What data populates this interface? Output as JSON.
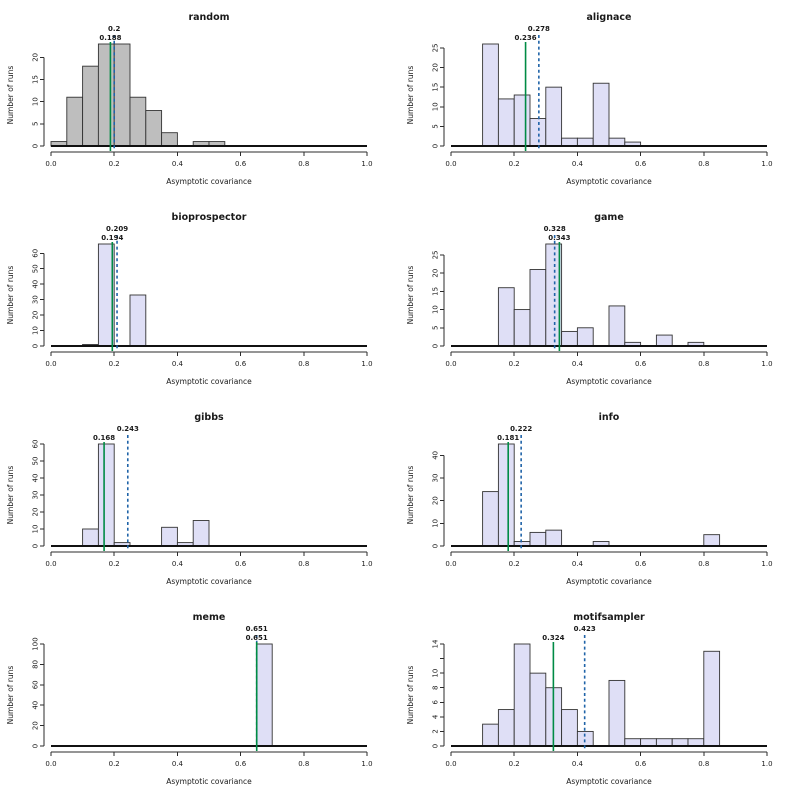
{
  "figure": {
    "layout": "4x2-grid",
    "background": "#ffffff",
    "colors": {
      "bar_gray": "#BEBEBE",
      "bar_lavender": "#DFDFF6",
      "bar_stroke": "#333333",
      "axis": "#2b2b2b",
      "solid_line": "#008B45",
      "dashed_line": "#1F63A8",
      "text": "#1a1a1a"
    },
    "axes_shared": {
      "xlabel": "Asymptotic covariance",
      "ylabel": "Number of runs",
      "xlim": [
        0.0,
        1.0
      ],
      "xticks": [
        0.0,
        0.2,
        0.4,
        0.6,
        0.8,
        1.0
      ],
      "xtick_labels": [
        "0.0",
        "0.2",
        "0.4",
        "0.6",
        "0.8",
        "1.0"
      ],
      "bin_width": 0.05,
      "bin_start": 0.0
    }
  },
  "chart_data": [
    {
      "type": "bar",
      "title": "random",
      "xlabel": "Asymptotic covariance",
      "ylabel": "Number of runs",
      "bar_color": "#BEBEBE",
      "ylim": [
        0,
        23
      ],
      "yticks": [
        0,
        5,
        10,
        15,
        20
      ],
      "counts": [
        1,
        11,
        18,
        23,
        23,
        11,
        8,
        3,
        0,
        1,
        1,
        0,
        0,
        0,
        0,
        0,
        0,
        0,
        0,
        0
      ],
      "solid_line": {
        "value": 0.188,
        "label": "0.188"
      },
      "dashed_line": {
        "value": 0.2,
        "label": "0.2"
      }
    },
    {
      "type": "bar",
      "title": "alignace",
      "xlabel": "Asymptotic covariance",
      "ylabel": "Number of runs",
      "bar_color": "#DFDFF6",
      "ylim": [
        0,
        26
      ],
      "yticks": [
        0,
        5,
        10,
        15,
        20,
        25
      ],
      "counts": [
        0,
        0,
        26,
        12,
        13,
        7,
        15,
        2,
        2,
        16,
        2,
        1,
        0,
        0,
        0,
        0,
        0,
        0,
        0,
        0
      ],
      "solid_line": {
        "value": 0.236,
        "label": "0.236"
      },
      "dashed_line": {
        "value": 0.278,
        "label": "0.278"
      }
    },
    {
      "type": "bar",
      "title": "bioprospector",
      "xlabel": "Asymptotic covariance",
      "ylabel": "Number of runs",
      "bar_color": "#DFDFF6",
      "ylim": [
        0,
        66
      ],
      "yticks": [
        0,
        10,
        20,
        30,
        40,
        50,
        60
      ],
      "counts": [
        0,
        0,
        1,
        66,
        0,
        33,
        0,
        0,
        0,
        0,
        0,
        0,
        0,
        0,
        0,
        0,
        0,
        0,
        0,
        0
      ],
      "solid_line": {
        "value": 0.194,
        "label": "0.194"
      },
      "dashed_line": {
        "value": 0.209,
        "label": "0.209"
      }
    },
    {
      "type": "bar",
      "title": "game",
      "xlabel": "Asymptotic covariance",
      "ylabel": "Number of runs",
      "bar_color": "#DFDFF6",
      "ylim": [
        0,
        28
      ],
      "yticks": [
        0,
        5,
        10,
        15,
        20,
        25
      ],
      "counts": [
        0,
        0,
        0,
        16,
        10,
        21,
        28,
        4,
        5,
        0,
        11,
        1,
        0,
        3,
        0,
        1,
        0,
        0,
        0,
        0
      ],
      "solid_line": {
        "value": 0.343,
        "label": "0.343"
      },
      "dashed_line": {
        "value": 0.328,
        "label": "0.328"
      }
    },
    {
      "type": "bar",
      "title": "gibbs",
      "xlabel": "Asymptotic covariance",
      "ylabel": "Number of runs",
      "bar_color": "#DFDFF6",
      "ylim": [
        0,
        60
      ],
      "yticks": [
        0,
        10,
        20,
        30,
        40,
        50,
        60
      ],
      "counts": [
        0,
        0,
        10,
        60,
        2,
        0,
        0,
        11,
        2,
        15,
        0,
        0,
        0,
        0,
        0,
        0,
        0,
        0,
        0,
        0
      ],
      "solid_line": {
        "value": 0.168,
        "label": "0.168"
      },
      "dashed_line": {
        "value": 0.243,
        "label": "0.243"
      }
    },
    {
      "type": "bar",
      "title": "info",
      "xlabel": "Asymptotic covariance",
      "ylabel": "Number of runs",
      "bar_color": "#DFDFF6",
      "ylim": [
        0,
        45
      ],
      "yticks": [
        0,
        10,
        20,
        30,
        40
      ],
      "counts": [
        0,
        0,
        24,
        45,
        2,
        6,
        7,
        0,
        0,
        2,
        0,
        0,
        0,
        0,
        0,
        0,
        5,
        0,
        0,
        0
      ],
      "solid_line": {
        "value": 0.181,
        "label": "0.181"
      },
      "dashed_line": {
        "value": 0.222,
        "label": "0.222"
      }
    },
    {
      "type": "bar",
      "title": "meme",
      "xlabel": "Asymptotic covariance",
      "ylabel": "Number of runs",
      "bar_color": "#DFDFF6",
      "ylim": [
        0,
        100
      ],
      "yticks": [
        0,
        20,
        40,
        60,
        80,
        100
      ],
      "counts": [
        0,
        0,
        0,
        0,
        0,
        0,
        0,
        0,
        0,
        0,
        0,
        0,
        0,
        100,
        0,
        0,
        0,
        0,
        0,
        0
      ],
      "solid_line": {
        "value": 0.651,
        "label": "0.651"
      },
      "dashed_line": {
        "value": 0.651,
        "label": "0.651"
      }
    },
    {
      "type": "bar",
      "title": "motifsampler",
      "xlabel": "Asymptotic covariance",
      "ylabel": "Number of runs",
      "bar_color": "#DFDFF6",
      "ylim": [
        0,
        14
      ],
      "yticks": [
        0,
        2,
        4,
        6,
        8,
        10,
        12,
        14
      ],
      "ytick_labels": [
        "0",
        "2",
        "4",
        "6",
        "8",
        "10",
        "",
        "14"
      ],
      "counts": [
        0,
        0,
        3,
        5,
        14,
        10,
        8,
        5,
        2,
        0,
        9,
        1,
        1,
        1,
        1,
        1,
        13,
        0,
        0,
        0
      ],
      "solid_line": {
        "value": 0.324,
        "label": "0.324"
      },
      "dashed_line": {
        "value": 0.423,
        "label": "0.423"
      }
    }
  ]
}
